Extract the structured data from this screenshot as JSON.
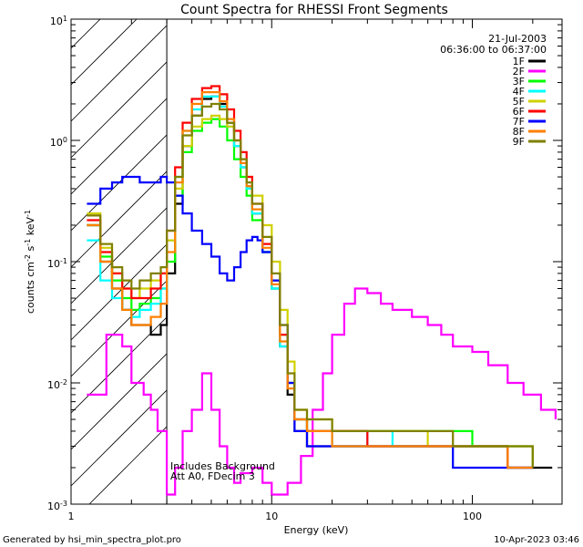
{
  "chart_data": {
    "type": "line",
    "step_style": true,
    "title": "Count Spectra for RHESSI Front Segments",
    "xlabel": "Energy (keV)",
    "ylabel_parts": [
      "counts cm",
      "-2",
      " s",
      "-1",
      " keV",
      "-1"
    ],
    "xscale": "log",
    "yscale": "log",
    "xlim": [
      1,
      280
    ],
    "ylim": [
      0.001,
      10
    ],
    "x_ticks": [
      {
        "value": 1,
        "label": "1"
      },
      {
        "value": 10,
        "label": "10"
      },
      {
        "value": 100,
        "label": "100"
      }
    ],
    "y_ticks": [
      {
        "value": 0.001,
        "base": "10",
        "exp": "-3"
      },
      {
        "value": 0.01,
        "base": "10",
        "exp": "-2"
      },
      {
        "value": 0.1,
        "base": "10",
        "exp": "-1"
      },
      {
        "value": 1,
        "base": "10",
        "exp": "0"
      },
      {
        "value": 10,
        "base": "10",
        "exp": "1"
      }
    ],
    "shaded_region": {
      "x_from": 1,
      "x_to": 3,
      "style": "diagonal hatch"
    },
    "date_label": "21-Jul-2003",
    "time_range_label": "06:36:00 to 06:37:00",
    "annotations": [
      "Includes Background",
      "Att A0, FDecim 3"
    ],
    "series": [
      {
        "name": "1F",
        "color": "#000000",
        "x": [
          1.2,
          1.4,
          1.6,
          1.8,
          2.0,
          2.2,
          2.5,
          2.8,
          3.0,
          3.3,
          3.6,
          4.0,
          4.5,
          5.0,
          5.5,
          6.0,
          6.5,
          7.0,
          7.5,
          8.0,
          9.0,
          10.0,
          11.0,
          12.0,
          13.0,
          15.0,
          20.0,
          30.0,
          40.0,
          60.0,
          80.0,
          100.0,
          150.0,
          200.0,
          250.0
        ],
        "y": [
          0.2,
          0.1,
          0.06,
          0.04,
          0.03,
          0.03,
          0.025,
          0.03,
          0.08,
          0.3,
          0.9,
          1.6,
          2.2,
          2.3,
          2.0,
          1.4,
          0.9,
          0.6,
          0.4,
          0.25,
          0.12,
          0.06,
          0.02,
          0.008,
          0.004,
          0.003,
          0.003,
          0.003,
          0.003,
          0.003,
          0.003,
          0.003,
          0.002,
          0.002,
          0.002
        ]
      },
      {
        "name": "2F",
        "color": "#ff00ff",
        "x": [
          1.2,
          1.4,
          1.5,
          1.8,
          2.0,
          2.3,
          2.5,
          2.7,
          3.0,
          3.3,
          3.6,
          4.0,
          4.5,
          5.0,
          5.5,
          6.0,
          6.5,
          7.0,
          8.0,
          9.0,
          10.0,
          12.0,
          14.0,
          16.0,
          18.0,
          20.0,
          23.0,
          26.0,
          30.0,
          35.0,
          40.0,
          50.0,
          60.0,
          70.0,
          80.0,
          100.0,
          120.0,
          150.0,
          180.0,
          220.0,
          260.0
        ],
        "y": [
          0.008,
          0.008,
          0.025,
          0.02,
          0.01,
          0.008,
          0.006,
          0.004,
          0.0012,
          0.002,
          0.004,
          0.006,
          0.012,
          0.006,
          0.003,
          0.002,
          0.0015,
          0.0018,
          0.002,
          0.0015,
          0.0012,
          0.0015,
          0.0025,
          0.006,
          0.012,
          0.025,
          0.045,
          0.06,
          0.055,
          0.045,
          0.04,
          0.035,
          0.03,
          0.025,
          0.02,
          0.018,
          0.014,
          0.01,
          0.008,
          0.006,
          0.005
        ]
      },
      {
        "name": "3F",
        "color": "#00ff00",
        "x": [
          1.2,
          1.4,
          1.6,
          1.8,
          2.0,
          2.2,
          2.5,
          2.8,
          3.0,
          3.3,
          3.6,
          4.0,
          4.5,
          5.0,
          5.5,
          6.0,
          6.5,
          7.0,
          7.5,
          8.0,
          9.0,
          10.0,
          11.0,
          12.0,
          13.0,
          15.0,
          20.0,
          30.0,
          40.0,
          60.0,
          80.0,
          100.0,
          150.0,
          200.0
        ],
        "y": [
          0.2,
          0.11,
          0.07,
          0.05,
          0.04,
          0.045,
          0.05,
          0.06,
          0.1,
          0.35,
          0.8,
          1.2,
          1.4,
          1.5,
          1.3,
          1.0,
          0.7,
          0.5,
          0.35,
          0.22,
          0.12,
          0.06,
          0.025,
          0.01,
          0.005,
          0.004,
          0.004,
          0.004,
          0.004,
          0.004,
          0.004,
          0.003,
          0.003,
          0.002
        ]
      },
      {
        "name": "4F",
        "color": "#00ffff",
        "x": [
          1.2,
          1.4,
          1.6,
          1.8,
          2.0,
          2.2,
          2.5,
          2.8,
          3.0,
          3.3,
          3.6,
          4.0,
          4.5,
          5.0,
          5.5,
          6.0,
          6.5,
          7.0,
          7.5,
          8.0,
          9.0,
          10.0,
          11.0,
          12.0,
          13.0,
          15.0,
          20.0,
          30.0,
          40.0,
          60.0,
          80.0,
          100.0,
          150.0,
          200.0
        ],
        "y": [
          0.15,
          0.07,
          0.05,
          0.04,
          0.035,
          0.04,
          0.045,
          0.06,
          0.15,
          0.5,
          1.2,
          1.8,
          2.3,
          2.3,
          1.9,
          1.3,
          0.9,
          0.6,
          0.4,
          0.25,
          0.12,
          0.06,
          0.02,
          0.01,
          0.005,
          0.004,
          0.003,
          0.004,
          0.003,
          0.003,
          0.003,
          0.003,
          0.002,
          0.002
        ]
      },
      {
        "name": "5F",
        "color": "#d0d000",
        "x": [
          1.2,
          1.4,
          1.6,
          1.8,
          2.0,
          2.2,
          2.5,
          2.8,
          3.0,
          3.3,
          3.6,
          4.0,
          4.5,
          5.0,
          5.5,
          6.0,
          6.5,
          7.0,
          7.5,
          8.0,
          9.0,
          10.0,
          11.0,
          12.0,
          13.0,
          15.0,
          20.0,
          30.0,
          40.0,
          60.0,
          80.0,
          100.0,
          150.0,
          200.0
        ],
        "y": [
          0.25,
          0.13,
          0.08,
          0.06,
          0.05,
          0.06,
          0.07,
          0.08,
          0.15,
          0.4,
          0.9,
          1.3,
          1.5,
          1.6,
          1.5,
          1.3,
          1.0,
          0.7,
          0.5,
          0.35,
          0.2,
          0.1,
          0.04,
          0.015,
          0.006,
          0.005,
          0.004,
          0.004,
          0.004,
          0.003,
          0.003,
          0.003,
          0.003,
          0.002
        ]
      },
      {
        "name": "6F",
        "color": "#ff0000",
        "x": [
          1.2,
          1.4,
          1.6,
          1.8,
          2.0,
          2.2,
          2.5,
          2.8,
          3.0,
          3.3,
          3.6,
          4.0,
          4.5,
          5.0,
          5.5,
          6.0,
          6.5,
          7.0,
          7.5,
          8.0,
          9.0,
          10.0,
          11.0,
          12.0,
          13.0,
          15.0,
          20.0,
          30.0,
          40.0,
          60.0,
          80.0,
          100.0,
          150.0,
          200.0
        ],
        "y": [
          0.22,
          0.12,
          0.08,
          0.06,
          0.05,
          0.05,
          0.06,
          0.08,
          0.18,
          0.6,
          1.4,
          2.2,
          2.7,
          2.8,
          2.4,
          1.8,
          1.2,
          0.8,
          0.5,
          0.3,
          0.14,
          0.07,
          0.025,
          0.01,
          0.005,
          0.004,
          0.004,
          0.003,
          0.003,
          0.003,
          0.003,
          0.003,
          0.002,
          0.002
        ]
      },
      {
        "name": "7F",
        "color": "#0000ff",
        "x": [
          1.2,
          1.4,
          1.6,
          1.8,
          2.0,
          2.2,
          2.5,
          2.8,
          3.0,
          3.3,
          3.6,
          4.0,
          4.5,
          5.0,
          5.5,
          6.0,
          6.5,
          7.0,
          7.5,
          8.0,
          8.5,
          9.0,
          10.0,
          11.0,
          12.0,
          13.0,
          15.0,
          20.0,
          30.0,
          40.0,
          60.0,
          80.0,
          100.0,
          150.0,
          200.0
        ],
        "y": [
          0.3,
          0.4,
          0.45,
          0.5,
          0.5,
          0.45,
          0.45,
          0.5,
          0.45,
          0.35,
          0.25,
          0.18,
          0.14,
          0.11,
          0.08,
          0.07,
          0.09,
          0.12,
          0.15,
          0.16,
          0.15,
          0.12,
          0.07,
          0.03,
          0.01,
          0.004,
          0.003,
          0.003,
          0.003,
          0.003,
          0.003,
          0.002,
          0.002,
          0.002,
          0.002
        ]
      },
      {
        "name": "8F",
        "color": "#ff8000",
        "x": [
          1.2,
          1.4,
          1.6,
          1.8,
          2.0,
          2.2,
          2.5,
          2.8,
          3.0,
          3.3,
          3.6,
          4.0,
          4.5,
          5.0,
          5.5,
          6.0,
          6.5,
          7.0,
          7.5,
          8.0,
          9.0,
          10.0,
          11.0,
          12.0,
          13.0,
          15.0,
          20.0,
          30.0,
          40.0,
          60.0,
          80.0,
          100.0,
          150.0,
          200.0
        ],
        "y": [
          0.2,
          0.1,
          0.06,
          0.04,
          0.03,
          0.03,
          0.035,
          0.045,
          0.12,
          0.45,
          1.2,
          2.0,
          2.5,
          2.5,
          2.1,
          1.5,
          1.0,
          0.65,
          0.42,
          0.27,
          0.13,
          0.065,
          0.022,
          0.009,
          0.005,
          0.004,
          0.003,
          0.003,
          0.003,
          0.003,
          0.003,
          0.003,
          0.002,
          0.002
        ]
      },
      {
        "name": "9F",
        "color": "#808000",
        "x": [
          1.2,
          1.4,
          1.6,
          1.8,
          2.0,
          2.2,
          2.5,
          2.8,
          3.0,
          3.3,
          3.6,
          4.0,
          4.5,
          5.0,
          5.5,
          6.0,
          6.5,
          7.0,
          7.5,
          8.0,
          9.0,
          10.0,
          11.0,
          12.0,
          13.0,
          15.0,
          20.0,
          30.0,
          40.0,
          60.0,
          80.0,
          100.0,
          150.0,
          200.0
        ],
        "y": [
          0.24,
          0.14,
          0.09,
          0.07,
          0.06,
          0.07,
          0.08,
          0.09,
          0.18,
          0.5,
          1.1,
          1.6,
          1.9,
          2.0,
          1.8,
          1.4,
          1.0,
          0.7,
          0.45,
          0.3,
          0.16,
          0.08,
          0.03,
          0.012,
          0.006,
          0.005,
          0.004,
          0.004,
          0.004,
          0.004,
          0.003,
          0.003,
          0.003,
          0.002
        ]
      }
    ]
  },
  "footer": {
    "generated_by": "Generated by hsi_min_spectra_plot.pro",
    "timestamp": "10-Apr-2023 03:46"
  }
}
